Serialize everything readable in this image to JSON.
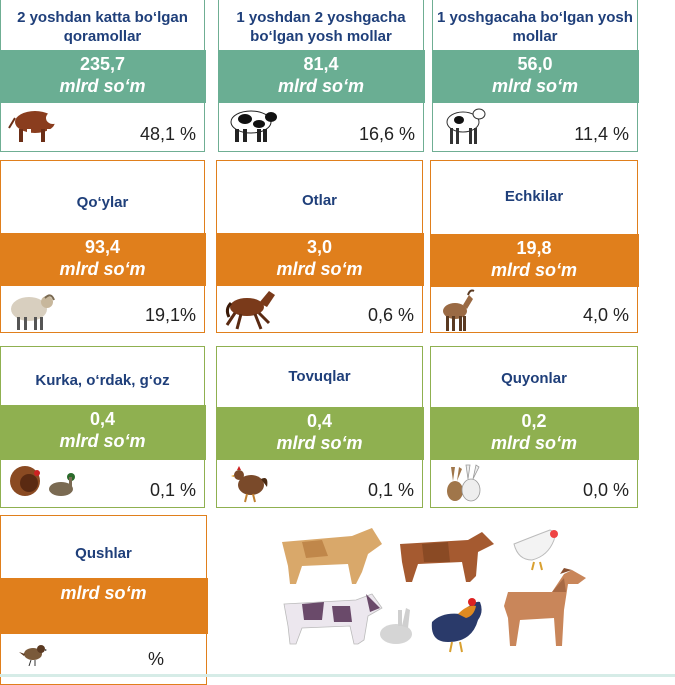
{
  "cards": [
    {
      "title": "2 yoshdan katta bo‘lgan qoramollar",
      "value": "235,7",
      "unit": "mlrd so‘m",
      "pct": "48,1 %",
      "icon": "bull-icon"
    },
    {
      "title": "1 yoshdan 2 yoshgacha bo‘lgan yosh mollar",
      "value": "81,4",
      "unit": "mlrd so‘m",
      "pct": "16,6 %",
      "icon": "cow-icon"
    },
    {
      "title": "1 yoshgacaha bo‘lgan yosh mollar",
      "value": "56,0",
      "unit": "mlrd so‘m",
      "pct": "11,4 %",
      "icon": "calf-icon"
    },
    {
      "title": "Qo‘ylar",
      "value": "93,4",
      "unit": "mlrd so‘m",
      "pct": "19,1%",
      "icon": "sheep-icon"
    },
    {
      "title": "Otlar",
      "value": "3,0",
      "unit": "mlrd so‘m",
      "pct": "0,6 %",
      "icon": "horse-icon"
    },
    {
      "title": "Echkilar",
      "value": "19,8",
      "unit": "mlrd so‘m",
      "pct": "4,0 %",
      "icon": "goat-icon"
    },
    {
      "title": "Kurka, o‘rdak, g‘oz",
      "value": "0,4",
      "unit": "mlrd so‘m",
      "pct": "0,1 %",
      "icon": "turkey-duck-icon"
    },
    {
      "title": "Tovuqlar",
      "value": "0,4",
      "unit": "mlrd so‘m",
      "pct": "0,1 %",
      "icon": "hen-icon"
    },
    {
      "title": "Quyonlar",
      "value": "0,2",
      "unit": "mlrd so‘m",
      "pct": "0,0 %",
      "icon": "rabbit-icon"
    },
    {
      "title": "Qushlar",
      "value": "",
      "unit": "mlrd so‘m",
      "pct": "%",
      "icon": "sparrow-icon"
    }
  ],
  "colors": {
    "green": "#6aae93",
    "orange": "#e07f1c",
    "olive": "#8fb050",
    "title": "#1f3f7a"
  }
}
